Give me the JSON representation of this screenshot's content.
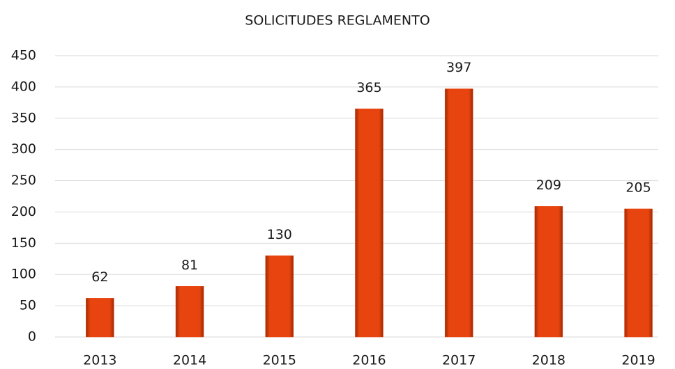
{
  "chart_data": {
    "type": "bar",
    "title": "SOLICITUDES REGLAMENTO",
    "categories": [
      "2013",
      "2014",
      "2015",
      "2016",
      "2017",
      "2018",
      "2019"
    ],
    "values": [
      62,
      81,
      130,
      365,
      397,
      209,
      205
    ],
    "color": "#e8440f",
    "ylim": [
      0,
      450
    ],
    "yticks": [
      0,
      50,
      100,
      150,
      200,
      250,
      300,
      350,
      400,
      450
    ],
    "grid": true
  }
}
